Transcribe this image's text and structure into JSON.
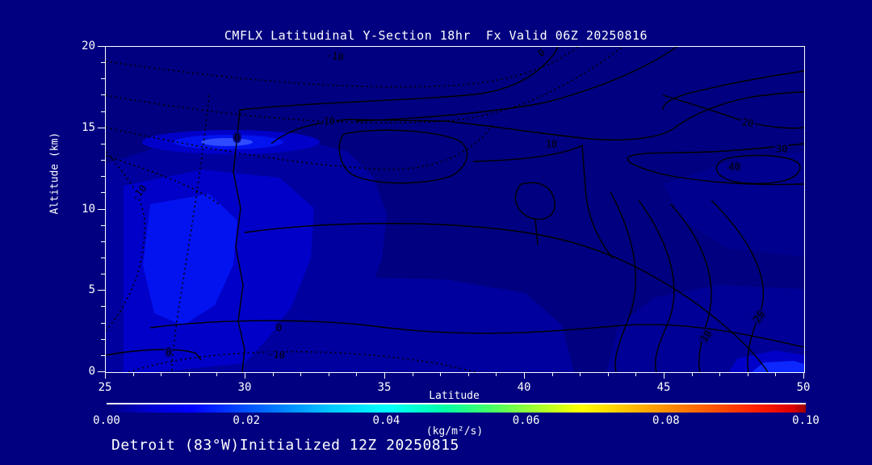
{
  "window": {
    "background": "#000080",
    "foreground": "#ffffff"
  },
  "title": "CMFLX Latitudinal Y-Section 18hr  Fx Valid 06Z 20250816",
  "footer": "Detroit (83°W)Initialized 12Z 20250815",
  "chart_data": {
    "type": "heatmap",
    "subtype": "filled-contour-cross-section",
    "title": "CMFLX Latitudinal Y-Section 18hr  Fx Valid 06Z 20250816",
    "station": "Detroit (83°W)",
    "initialized": "12Z 20250815",
    "forecast_hour": "18hr",
    "valid": "06Z 20250816",
    "xlabel": "Latitude",
    "ylabel": "Altitude (km)",
    "x_axis": {
      "min": 25,
      "max": 50,
      "major_ticks": [
        "25",
        "30",
        "35",
        "40",
        "45",
        "50"
      ],
      "major_values": [
        25,
        30,
        35,
        40,
        45,
        50
      ],
      "minor_step": 1
    },
    "y_axis": {
      "min": 0,
      "max": 20,
      "major_ticks": [
        "0",
        "5",
        "10",
        "15",
        "20"
      ],
      "major_values": [
        0,
        5,
        10,
        15,
        20
      ],
      "minor_step": 1
    },
    "grid": false,
    "contour_line_values": [
      -10,
      0,
      10,
      20,
      30,
      40
    ],
    "contour_style": {
      "negative": "dotted",
      "positive": "solid",
      "color": "#000000"
    },
    "contour_labels": [
      {
        "text": "-10",
        "lat": 33.2,
        "alt": 19.4,
        "rot": 8,
        "halo": "#000080"
      },
      {
        "text": "0",
        "lat": 40.6,
        "alt": 19.6,
        "rot": -35,
        "halo": "#000080"
      },
      {
        "text": "0",
        "lat": 29.7,
        "alt": 14.4,
        "rot": 0,
        "halo": "#000080"
      },
      {
        "text": "10",
        "lat": 33.0,
        "alt": 15.4,
        "rot": 0,
        "halo": "#000080"
      },
      {
        "text": "10",
        "lat": 40.95,
        "alt": 14.0,
        "rot": 0,
        "halo": "#000080"
      },
      {
        "text": "-10",
        "lat": 26.2,
        "alt": 11.0,
        "rot": -50,
        "halo": "#0000C8"
      },
      {
        "text": "0",
        "lat": 31.2,
        "alt": 2.7,
        "rot": 0,
        "halo": "#00009E"
      },
      {
        "text": "0",
        "lat": 27.25,
        "alt": 1.2,
        "rot": 0,
        "halo": "#00009E"
      },
      {
        "text": "-10",
        "lat": 31.1,
        "alt": 1.05,
        "rot": 5,
        "halo": "#00009E"
      },
      {
        "text": "20",
        "lat": 47.98,
        "alt": 15.3,
        "rot": 10,
        "halo": "#000080"
      },
      {
        "text": "30",
        "lat": 49.2,
        "alt": 13.7,
        "rot": 0,
        "halo": "#000080"
      },
      {
        "text": "40",
        "lat": 47.5,
        "alt": 12.6,
        "rot": 0,
        "halo": "#000080"
      },
      {
        "text": "10",
        "lat": 46.5,
        "alt": 2.2,
        "rot": -55,
        "halo": "#000080"
      },
      {
        "text": "20",
        "lat": 48.4,
        "alt": 3.4,
        "rot": -55,
        "halo": "#000080"
      }
    ],
    "fill_levels": [
      {
        "range": "background",
        "color": "#000080"
      },
      {
        "range": "level-1",
        "color": "#00009E"
      },
      {
        "range": "level-2",
        "color": "#0000C8"
      },
      {
        "range": "level-3",
        "color": "#0313F0"
      },
      {
        "range": "level-4-core",
        "color": "#2E4BFF"
      }
    ],
    "features": [
      "bright shallow maximum near lat 28, alt 14 km",
      "broad weak maximum lat 26-31, alt 2-12 km",
      "small enhanced patch near lat 48-50 at surface"
    ],
    "colorbar": {
      "min": 0.0,
      "max": 0.1,
      "ticks": [
        "0.00",
        "0.02",
        "0.04",
        "0.06",
        "0.08",
        "0.10"
      ],
      "unit": "(kg/m²/s)",
      "gradient": [
        {
          "pos": 0,
          "color": "#000080"
        },
        {
          "pos": 6,
          "color": "#0000CD"
        },
        {
          "pos": 12,
          "color": "#0000FF"
        },
        {
          "pos": 22,
          "color": "#0064FF"
        },
        {
          "pos": 32,
          "color": "#00C8FF"
        },
        {
          "pos": 40,
          "color": "#00FFFF"
        },
        {
          "pos": 48,
          "color": "#00FFAA"
        },
        {
          "pos": 55,
          "color": "#46FF64"
        },
        {
          "pos": 62,
          "color": "#AAFF2A"
        },
        {
          "pos": 68,
          "color": "#FFFF00"
        },
        {
          "pos": 77,
          "color": "#FFAA00"
        },
        {
          "pos": 85,
          "color": "#FF6400"
        },
        {
          "pos": 93,
          "color": "#FF1E00"
        },
        {
          "pos": 98,
          "color": "#DC0000"
        },
        {
          "pos": 100,
          "color": "#A00000"
        }
      ]
    }
  }
}
